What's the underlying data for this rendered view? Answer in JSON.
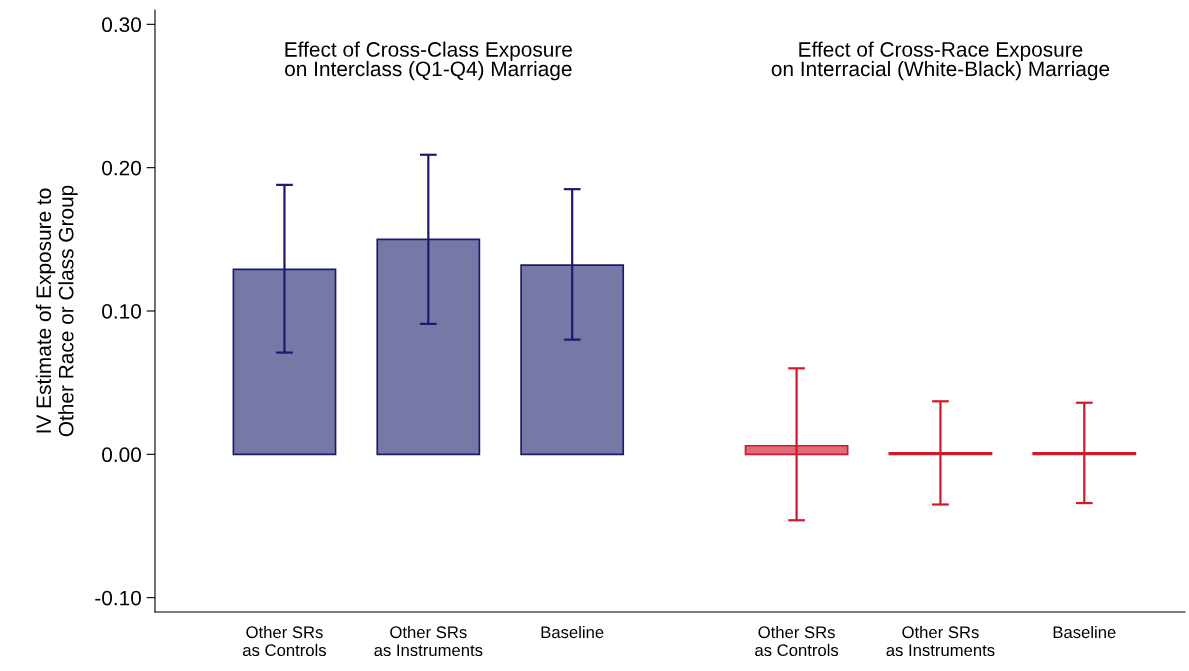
{
  "chart_data": {
    "type": "bar",
    "ylabel": "IV Estimate of Exposure to\nOther Race or Class Group",
    "categories": [
      "Other SRs\nas Controls",
      "Other SRs\nas Instruments",
      "Baseline",
      "Other SRs\nas Controls",
      "Other SRs\nas Instruments",
      "Baseline"
    ],
    "values": [
      0.129,
      0.15,
      0.132,
      0.006,
      0.001,
      0.001
    ],
    "errors": [
      [
        0.071,
        0.188
      ],
      [
        0.091,
        0.209
      ],
      [
        0.08,
        0.185
      ],
      [
        -0.046,
        0.06
      ],
      [
        -0.035,
        0.037
      ],
      [
        -0.034,
        0.036
      ]
    ],
    "colors": [
      "#7679a6",
      "#7679a6",
      "#7679a6",
      "#e06c78",
      "#e06c78",
      "#e06c78"
    ],
    "annotations": [
      "Effect of Cross-Class Exposure\non Interclass (Q1-Q4) Marriage",
      "Effect of Cross-Race Exposure\non Interracial (White-Black) Marriage"
    ],
    "ylim": [
      -0.11,
      0.31
    ],
    "yticks": [
      {
        "value": -0.1,
        "label": "-0.10"
      },
      {
        "value": 0.0,
        "label": "0.00"
      },
      {
        "value": 0.1,
        "label": "0.10"
      },
      {
        "value": 0.2,
        "label": "0.20"
      },
      {
        "value": 0.3,
        "label": "0.30"
      }
    ],
    "grid": false,
    "legend": false
  }
}
